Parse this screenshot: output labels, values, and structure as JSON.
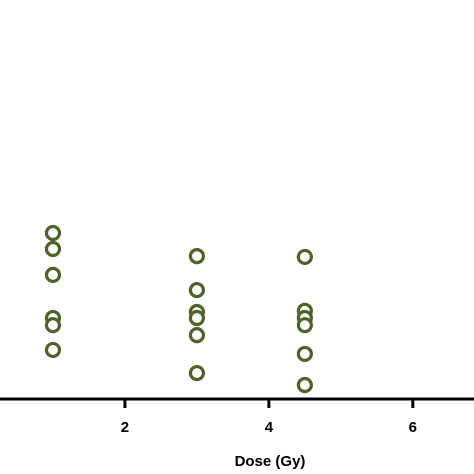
{
  "chart_data": {
    "type": "scatter",
    "x_label": "Dose (Gy)",
    "series": [
      {
        "color": "#4f6228",
        "x": [
          1,
          1,
          1,
          1,
          1,
          1,
          3,
          3,
          3,
          3,
          3,
          3,
          4.5,
          4.5,
          4.5,
          4.5,
          4.5,
          4.5
        ],
        "values": [
          4.16,
          3.76,
          3.11,
          2.03,
          1.85,
          1.23,
          3.58,
          2.73,
          2.18,
          2.03,
          1.6,
          0.65,
          3.56,
          2.21,
          2.03,
          1.85,
          1.13,
          0.35
        ]
      }
    ],
    "xlim": [
      0.264,
      6.85
    ],
    "xticks": [
      2,
      4,
      6
    ],
    "ylim": [
      0,
      10
    ]
  }
}
